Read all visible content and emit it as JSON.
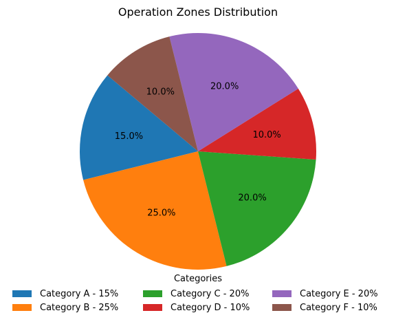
{
  "chart_data": {
    "type": "pie",
    "title": "Operation Zones Distribution",
    "categories": [
      "Category A",
      "Category B",
      "Category C",
      "Category D",
      "Category E",
      "Category F"
    ],
    "values": [
      15,
      25,
      20,
      10,
      20,
      10
    ],
    "slice_labels": [
      "15.0%",
      "25.0%",
      "20.0%",
      "10.0%",
      "20.0%",
      "10.0%"
    ],
    "colors": [
      "#1f77b4",
      "#ff7f0e",
      "#2ca02c",
      "#d62728",
      "#9467bd",
      "#8c564b"
    ],
    "start_angle_deg": 140,
    "legend": {
      "title": "Categories",
      "placement": "bottom",
      "entries": [
        "Category A - 15%",
        "Category B - 25%",
        "Category C - 20%",
        "Category D - 10%",
        "Category E - 20%",
        "Category F - 10%"
      ]
    }
  }
}
